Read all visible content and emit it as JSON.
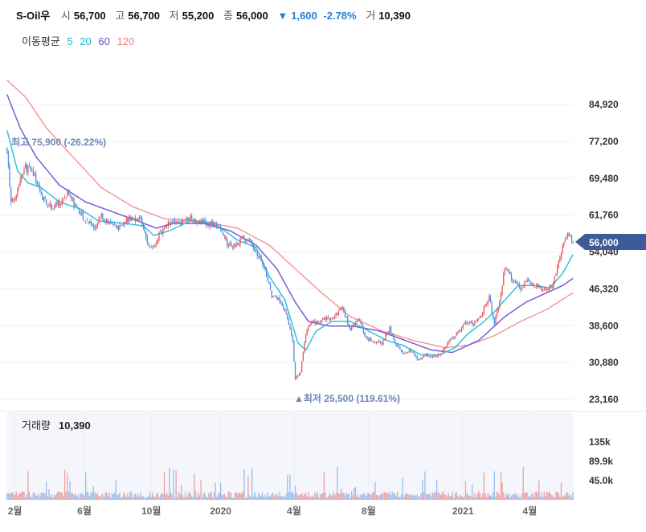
{
  "header": {
    "name": "S-Oil우",
    "open_label": "시",
    "open": "56,700",
    "high_label": "고",
    "high": "56,700",
    "low_label": "저",
    "low": "55,200",
    "close_label": "종",
    "close": "56,000",
    "change_arrow": "▼",
    "change": "1,600",
    "change_pct": "-2.78%",
    "volume_label": "거",
    "volume": "10,390"
  },
  "ma_legend": {
    "label": "이동평균",
    "items": [
      {
        "period": "5",
        "color": "#1fbad6"
      },
      {
        "period": "20",
        "color": "#1fbad6"
      },
      {
        "period": "60",
        "color": "#7b5cd6"
      },
      {
        "period": "120",
        "color": "#f08a8a"
      }
    ]
  },
  "colors": {
    "up": "#e8575b",
    "down": "#4c8fe0",
    "ma20": "#2fc3da",
    "ma60": "#7b5cd6",
    "ma120": "#f39a9a",
    "badge": "#3f5a99",
    "annotation": "#6f86b6"
  },
  "chart_data": {
    "type": "candlestick",
    "price_axis": {
      "ticks": [
        "84,920",
        "77,200",
        "69,480",
        "61,760",
        "54,040",
        "46,320",
        "38,600",
        "30,880",
        "23,160"
      ],
      "tick_values": [
        84920,
        77200,
        69480,
        61760,
        54040,
        46320,
        38600,
        30880,
        23160
      ]
    },
    "x_ticks": [
      "2월",
      "6월",
      "10월",
      "2020",
      "4월",
      "8월",
      "2021",
      "4월"
    ],
    "current_price": "56,000",
    "annotations": {
      "high": "최고 75,900 (-26.22%)",
      "low": "▲최저 25,500 (119.61%)"
    },
    "volume_panel": {
      "label": "거래량",
      "value": "10,390",
      "ticks": [
        "135k",
        "89.9k",
        "45.0k"
      ],
      "tick_values": [
        135000,
        89900,
        45000
      ]
    },
    "close_anchors": [
      [
        0,
        75500
      ],
      [
        3,
        64000
      ],
      [
        7,
        66500
      ],
      [
        13,
        72000
      ],
      [
        20,
        70500
      ],
      [
        26,
        66000
      ],
      [
        33,
        63500
      ],
      [
        40,
        64000
      ],
      [
        46,
        66500
      ],
      [
        54,
        62500
      ],
      [
        60,
        61000
      ],
      [
        66,
        59000
      ],
      [
        72,
        61500
      ],
      [
        78,
        60000
      ],
      [
        84,
        59000
      ],
      [
        90,
        60500
      ],
      [
        96,
        61200
      ],
      [
        102,
        61000
      ],
      [
        108,
        55000
      ],
      [
        112,
        55500
      ],
      [
        118,
        58500
      ],
      [
        124,
        60500
      ],
      [
        132,
        60500
      ],
      [
        140,
        61000
      ],
      [
        148,
        60500
      ],
      [
        155,
        60000
      ],
      [
        162,
        59500
      ],
      [
        168,
        55500
      ],
      [
        174,
        55500
      ],
      [
        180,
        57000
      ],
      [
        186,
        56000
      ],
      [
        190,
        54000
      ],
      [
        196,
        51000
      ],
      [
        202,
        45000
      ],
      [
        208,
        44000
      ],
      [
        214,
        40500
      ],
      [
        218,
        35000
      ],
      [
        220,
        27500
      ],
      [
        224,
        29000
      ],
      [
        228,
        37000
      ],
      [
        232,
        39000
      ],
      [
        238,
        39500
      ],
      [
        244,
        40000
      ],
      [
        250,
        40500
      ],
      [
        256,
        42500
      ],
      [
        262,
        37500
      ],
      [
        268,
        40500
      ],
      [
        274,
        36000
      ],
      [
        280,
        35500
      ],
      [
        286,
        35000
      ],
      [
        292,
        38000
      ],
      [
        296,
        35000
      ],
      [
        302,
        33000
      ],
      [
        308,
        33500
      ],
      [
        314,
        31500
      ],
      [
        320,
        32500
      ],
      [
        326,
        32000
      ],
      [
        332,
        33000
      ],
      [
        338,
        35500
      ],
      [
        344,
        37000
      ],
      [
        350,
        39500
      ],
      [
        356,
        39000
      ],
      [
        362,
        41000
      ],
      [
        368,
        44500
      ],
      [
        372,
        39000
      ],
      [
        376,
        44000
      ],
      [
        380,
        51000
      ],
      [
        386,
        48000
      ],
      [
        392,
        46500
      ],
      [
        398,
        48000
      ],
      [
        404,
        47000
      ],
      [
        410,
        46000
      ],
      [
        416,
        47000
      ],
      [
        420,
        51000
      ],
      [
        424,
        55000
      ],
      [
        428,
        58000
      ],
      [
        432,
        56000
      ]
    ],
    "ma20": [
      [
        0,
        79500
      ],
      [
        8,
        71000
      ],
      [
        16,
        68500
      ],
      [
        26,
        67500
      ],
      [
        40,
        64500
      ],
      [
        56,
        63000
      ],
      [
        70,
        60500
      ],
      [
        90,
        60000
      ],
      [
        104,
        59500
      ],
      [
        112,
        57500
      ],
      [
        124,
        58500
      ],
      [
        140,
        60500
      ],
      [
        156,
        60000
      ],
      [
        166,
        58500
      ],
      [
        176,
        56500
      ],
      [
        190,
        55000
      ],
      [
        200,
        49000
      ],
      [
        212,
        44000
      ],
      [
        222,
        35000
      ],
      [
        228,
        33500
      ],
      [
        236,
        37500
      ],
      [
        248,
        39500
      ],
      [
        262,
        39500
      ],
      [
        276,
        37500
      ],
      [
        290,
        35500
      ],
      [
        302,
        34500
      ],
      [
        316,
        32500
      ],
      [
        330,
        32500
      ],
      [
        342,
        34000
      ],
      [
        352,
        37000
      ],
      [
        362,
        39000
      ],
      [
        372,
        41500
      ],
      [
        380,
        44000
      ],
      [
        390,
        47000
      ],
      [
        402,
        47000
      ],
      [
        414,
        46500
      ],
      [
        424,
        49500
      ],
      [
        432,
        53500
      ]
    ],
    "ma60": [
      [
        0,
        87000
      ],
      [
        10,
        80000
      ],
      [
        22,
        74000
      ],
      [
        40,
        68000
      ],
      [
        60,
        64500
      ],
      [
        80,
        62500
      ],
      [
        100,
        60500
      ],
      [
        114,
        59000
      ],
      [
        126,
        60000
      ],
      [
        150,
        60000
      ],
      [
        170,
        58500
      ],
      [
        190,
        55500
      ],
      [
        206,
        50500
      ],
      [
        220,
        43500
      ],
      [
        230,
        39500
      ],
      [
        246,
        38500
      ],
      [
        264,
        38500
      ],
      [
        284,
        37500
      ],
      [
        304,
        35500
      ],
      [
        324,
        33500
      ],
      [
        340,
        33000
      ],
      [
        360,
        35500
      ],
      [
        380,
        40500
      ],
      [
        396,
        43500
      ],
      [
        412,
        45500
      ],
      [
        424,
        47000
      ],
      [
        432,
        48500
      ]
    ],
    "ma120": [
      [
        0,
        90000
      ],
      [
        14,
        86500
      ],
      [
        30,
        80000
      ],
      [
        50,
        74000
      ],
      [
        72,
        67500
      ],
      [
        96,
        63500
      ],
      [
        120,
        61000
      ],
      [
        148,
        60500
      ],
      [
        176,
        59000
      ],
      [
        200,
        55500
      ],
      [
        220,
        50500
      ],
      [
        240,
        45500
      ],
      [
        262,
        40500
      ],
      [
        286,
        37500
      ],
      [
        310,
        35500
      ],
      [
        334,
        34000
      ],
      [
        352,
        34500
      ],
      [
        372,
        36500
      ],
      [
        392,
        39500
      ],
      [
        412,
        42000
      ],
      [
        432,
        45500
      ]
    ]
  }
}
